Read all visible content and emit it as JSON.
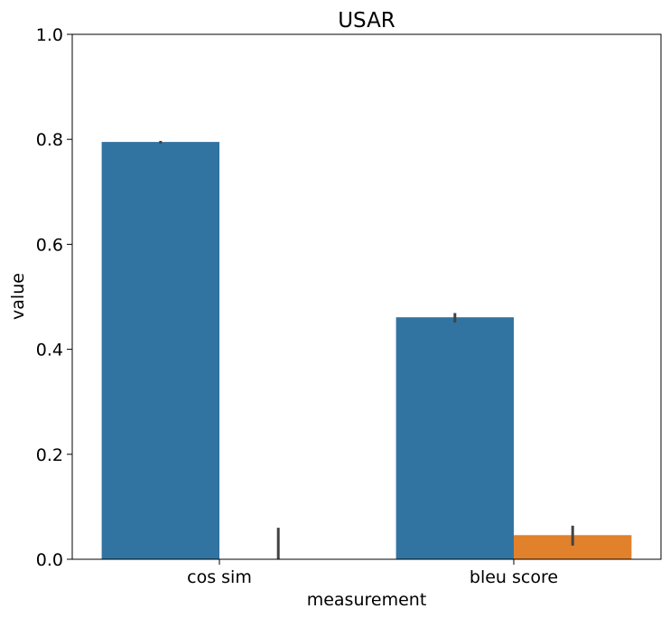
{
  "chart_data": {
    "type": "bar",
    "title": "USAR",
    "xlabel": "measurement",
    "ylabel": "value",
    "categories": [
      "cos sim",
      "bleu score"
    ],
    "ylim": [
      0,
      1.0
    ],
    "yticks": [
      "0.0",
      "0.2",
      "0.4",
      "0.6",
      "0.8",
      "1.0"
    ],
    "grid": false,
    "legend": "none",
    "series": [
      {
        "color": "#3274a1",
        "values": [
          0.795,
          0.461
        ],
        "err_low": [
          0.792,
          0.451
        ],
        "err_high": [
          0.797,
          0.469
        ]
      },
      {
        "color": "#e1812c",
        "values": [
          0.0,
          0.046
        ],
        "err_low": [
          0.0,
          0.026
        ],
        "err_high": [
          0.06,
          0.064
        ]
      }
    ]
  }
}
